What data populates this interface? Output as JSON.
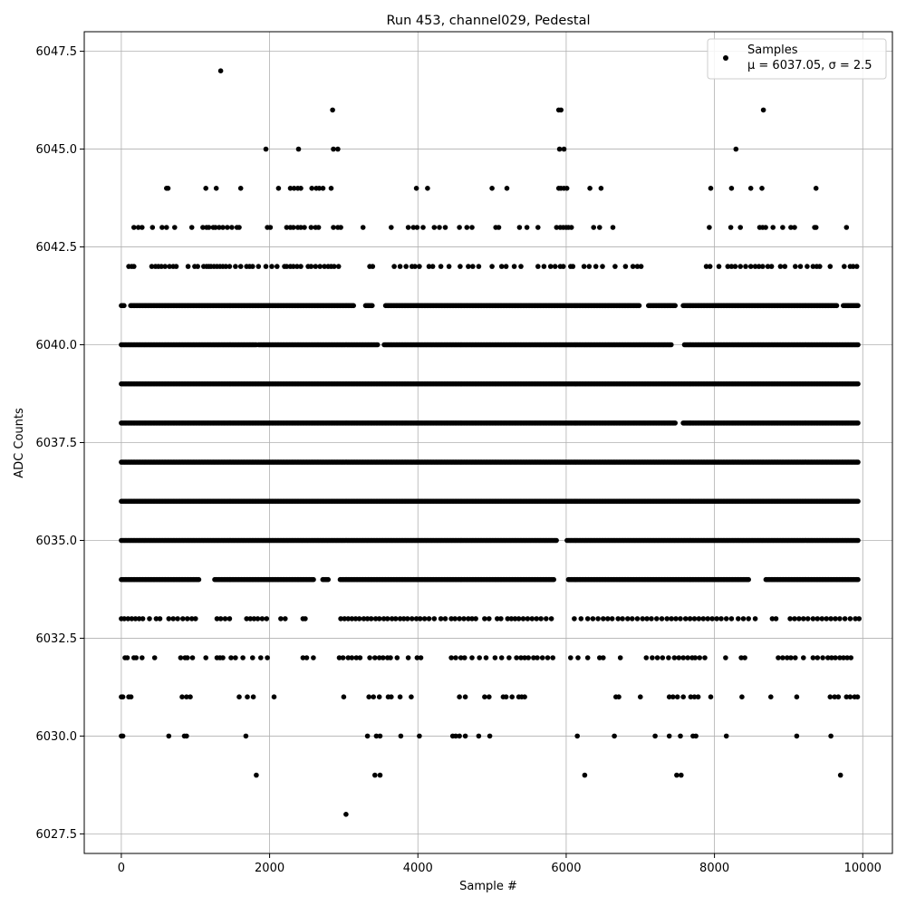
{
  "chart_data": {
    "type": "scatter",
    "title": "Run 453, channel029, Pedestal",
    "xlabel": "Sample #",
    "ylabel": "ADC Counts",
    "xlim": [
      -500,
      10400
    ],
    "ylim": [
      6027,
      6048
    ],
    "xticks": [
      0,
      2000,
      4000,
      6000,
      8000,
      10000
    ],
    "yticks": [
      6027.5,
      6030.0,
      6032.5,
      6035.0,
      6037.5,
      6040.0,
      6042.5,
      6045.0,
      6047.5
    ],
    "grid": true,
    "legend": {
      "position": "top-right",
      "entries": [
        {
          "label_line1": "Samples",
          "label_line2": "μ = 6037.05, σ = 2.5"
        }
      ]
    },
    "series": [
      {
        "marker_color": "#000000",
        "sample_range": [
          0,
          9950
        ],
        "levels": [
          {
            "y": 6028,
            "x": [
              3030
            ]
          },
          {
            "y": 6029,
            "x": [
              1820,
              3420,
              3490,
              6250,
              7490,
              7550,
              9700
            ]
          },
          {
            "y": 6030,
            "x": [
              0,
              20,
              640,
              850,
              880,
              1680,
              3320,
              3440,
              3490,
              3770,
              4020,
              4470,
              4510,
              4560,
              4640,
              4820,
              4970,
              6150,
              6650,
              7200,
              7390,
              7540,
              7710,
              7750,
              8160,
              9110,
              9570
            ]
          },
          {
            "y": 6031,
            "x": [
              0,
              20,
              100,
              130,
              820,
              880,
              930,
              1590,
              1700,
              1780,
              2060,
              3000,
              3340,
              3400,
              3480,
              3600,
              3640,
              3760,
              3910,
              4560,
              4640,
              4900,
              4960,
              5150,
              5190,
              5270,
              5360,
              5400,
              5440,
              6670,
              6710,
              7000,
              7390,
              7440,
              7500,
              7580,
              7680,
              7730,
              7780,
              7950,
              8370,
              8760,
              9110,
              9560,
              9620,
              9670,
              9780,
              9830,
              9890,
              9930
            ]
          },
          {
            "y": 6032,
            "x": [
              50,
              80,
              170,
              200,
              280,
              450,
              800,
              860,
              890,
              960,
              1140,
              1290,
              1330,
              1370,
              1480,
              1540,
              1640,
              1770,
              1880,
              1970,
              2450,
              2500,
              2590,
              2940,
              2990,
              3060,
              3110,
              3170,
              3220,
              3350,
              3420,
              3480,
              3530,
              3590,
              3630,
              3720,
              3870,
              3990,
              4040,
              4450,
              4510,
              4580,
              4630,
              4730,
              4830,
              4920,
              5040,
              5130,
              5230,
              5330,
              5390,
              5440,
              5490,
              5560,
              5610,
              5680,
              5750,
              5820,
              6060,
              6160,
              6290,
              6450,
              6500,
              6730,
              7080,
              7160,
              7230,
              7300,
              7380,
              7460,
              7520,
              7580,
              7640,
              7700,
              7740,
              7800,
              7870,
              8150,
              8360,
              8410,
              8860,
              8920,
              8980,
              9030,
              9090,
              9200,
              9330,
              9390,
              9460,
              9530,
              9580,
              9630,
              9690,
              9740,
              9790,
              9840
            ]
          },
          {
            "y": 6033,
            "x": [
              0,
              40,
              90,
              140,
              190,
              240,
              290,
              380,
              470,
              520,
              640,
              700,
              760,
              830,
              890,
              950,
              1000,
              1290,
              1340,
              1400,
              1460,
              1690,
              1740,
              1790,
              1840,
              1900,
              1960,
              2150,
              2210,
              2450,
              2480,
              2960,
              3010,
              3060,
              3110,
              3160,
              3210,
              3270,
              3320,
              3370,
              3430,
              3480,
              3540,
              3590,
              3650,
              3700,
              3760,
              3810,
              3860,
              3920,
              3980,
              4030,
              4090,
              4150,
              4220,
              4310,
              4370,
              4450,
              4500,
              4560,
              4620,
              4680,
              4730,
              4780,
              4900,
              4960,
              5070,
              5120,
              5210,
              5260,
              5310,
              5360,
              5420,
              5480,
              5540,
              5600,
              5660,
              5730,
              5800,
              6110,
              6200,
              6290,
              6360,
              6430,
              6500,
              6560,
              6620,
              6700,
              6760,
              6830,
              6890,
              6960,
              7030,
              7090,
              7150,
              7220,
              7290,
              7360,
              7420,
              7480,
              7540,
              7610,
              7670,
              7730,
              7790,
              7850,
              7910,
              7970,
              8030,
              8090,
              8160,
              8230,
              8320,
              8390,
              8460,
              8550,
              8780,
              8830,
              9020,
              9080,
              9140,
              9200,
              9260,
              9330,
              9390,
              9450,
              9510,
              9570,
              9630,
              9690,
              9760,
              9830,
              9900,
              9950
            ]
          }
        ],
        "dense_levels": [
          {
            "y": 6034,
            "x_start": 0,
            "x_end": 9950,
            "gaps": [
              [
                1050,
                1250
              ],
              [
                2600,
                2700
              ],
              [
                2800,
                2940
              ],
              [
                5850,
                6020
              ],
              [
                8470,
                8690
              ]
            ]
          },
          {
            "y": 6035,
            "x_start": 0,
            "x_end": 9950,
            "gaps": [
              [
                5870,
                6000
              ]
            ]
          },
          {
            "y": 6036,
            "x_start": 0,
            "x_end": 9950,
            "gaps": []
          },
          {
            "y": 6037,
            "x_start": 0,
            "x_end": 9950,
            "gaps": []
          },
          {
            "y": 6038,
            "x_start": 0,
            "x_end": 9950,
            "gaps": [
              [
                7480,
                7560
              ]
            ]
          },
          {
            "y": 6039,
            "x_start": 0,
            "x_end": 9950,
            "gaps": []
          },
          {
            "y": 6040,
            "x_start": 0,
            "x_end": 9950,
            "gaps": [
              [
                1820,
                1850
              ],
              [
                3470,
                3540
              ],
              [
                7420,
                7580
              ]
            ]
          },
          {
            "y": 6041,
            "x_start": 0,
            "x_end": 9950,
            "gaps": [
              [
                40,
                110
              ],
              [
                3150,
                3280
              ],
              [
                3400,
                3550
              ],
              [
                7000,
                7100
              ],
              [
                7480,
                7560
              ],
              [
                9650,
                9720
              ]
            ]
          }
        ],
        "sparse_upper": [
          {
            "y": 6042,
            "x": [
              100,
              140,
              170,
              410,
              460,
              500,
              540,
              590,
              650,
              700,
              740,
              900,
              990,
              1030,
              1110,
              1150,
              1180,
              1210,
              1250,
              1290,
              1330,
              1370,
              1410,
              1460,
              1540,
              1610,
              1690,
              1730,
              1770,
              1850,
              1950,
              2030,
              2100,
              2200,
              2230,
              2280,
              2320,
              2370,
              2420,
              2520,
              2560,
              2620,
              2680,
              2740,
              2790,
              2830,
              2870,
              2930,
              3350,
              3390,
              3680,
              3760,
              3840,
              3920,
              3960,
              4020,
              4150,
              4200,
              4310,
              4420,
              4570,
              4680,
              4740,
              4820,
              5000,
              5130,
              5190,
              5300,
              5390,
              5620,
              5700,
              5790,
              5850,
              5920,
              5960,
              6060,
              6090,
              6240,
              6310,
              6400,
              6490,
              6660,
              6800,
              6900,
              6960,
              7010,
              7890,
              7940,
              8060,
              8180,
              8230,
              8280,
              8350,
              8420,
              8490,
              8550,
              8600,
              8650,
              8720,
              8770,
              8890,
              8950,
              9090,
              9160,
              9250,
              9330,
              9380,
              9420,
              9560,
              9750,
              9830,
              9870,
              9920
            ]
          },
          {
            "y": 6043,
            "x": [
              170,
              230,
              280,
              420,
              550,
              610,
              720,
              950,
              1100,
              1150,
              1180,
              1240,
              1270,
              1320,
              1370,
              1430,
              1490,
              1560,
              1590,
              1970,
              2010,
              2230,
              2280,
              2320,
              2380,
              2420,
              2470,
              2560,
              2620,
              2660,
              2860,
              2920,
              2960,
              3260,
              3640,
              3870,
              3940,
              3990,
              4070,
              4220,
              4290,
              4370,
              4560,
              4660,
              4730,
              5050,
              5090,
              5370,
              5470,
              5620,
              5870,
              5920,
              5960,
              6000,
              6030,
              6070,
              6370,
              6450,
              6630,
              7930,
              8220,
              8350,
              8610,
              8650,
              8690,
              8790,
              8920,
              9030,
              9080,
              9350,
              9370,
              9780
            ]
          },
          {
            "y": 6044,
            "x": [
              610,
              630,
              1140,
              1280,
              1610,
              2120,
              2280,
              2330,
              2380,
              2420,
              2570,
              2630,
              2670,
              2720,
              2830,
              3980,
              4130,
              5000,
              5200,
              5900,
              5930,
              5970,
              6010,
              6320,
              6470,
              7950,
              8230,
              8490,
              8640,
              9370
            ]
          },
          {
            "y": 6045,
            "x": [
              1950,
              2390,
              2860,
              2920,
              5910,
              5970,
              8290
            ]
          },
          {
            "y": 6046,
            "x": [
              2850,
              5900,
              5930,
              8660
            ]
          },
          {
            "y": 6047,
            "x": [
              1340
            ]
          }
        ]
      }
    ]
  }
}
